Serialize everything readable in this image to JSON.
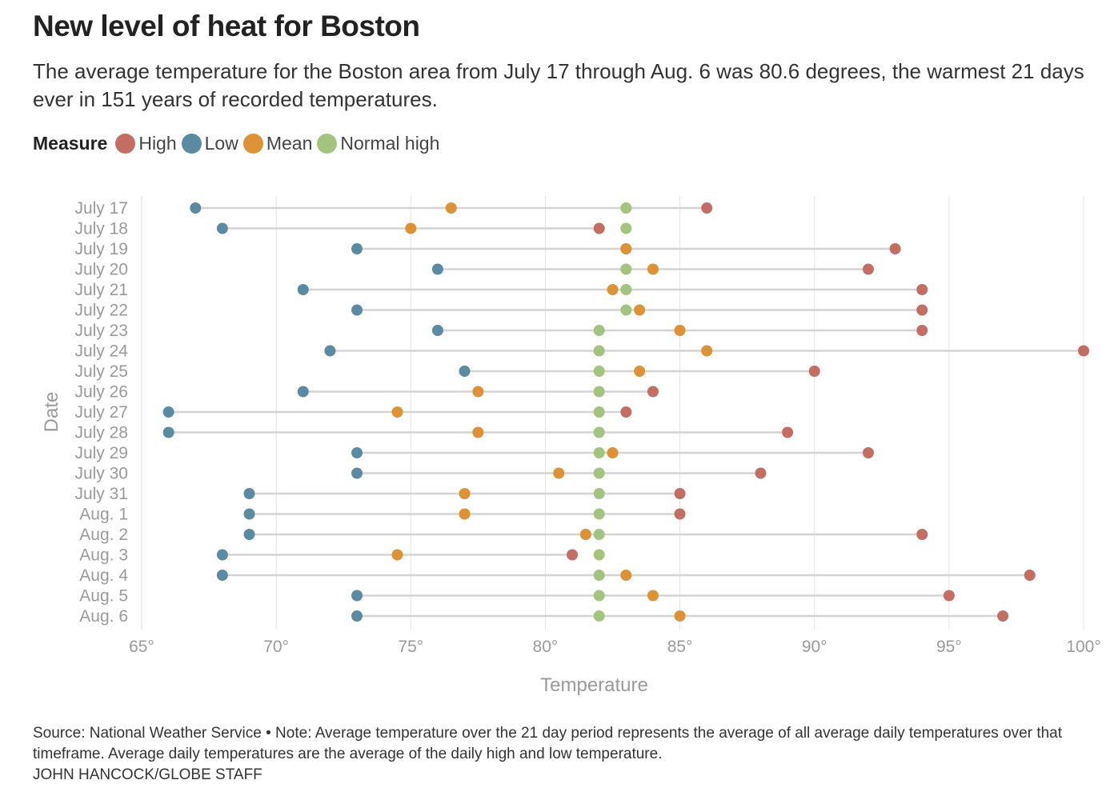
{
  "header": {
    "title": "New level of heat for Boston",
    "subtitle": "The average temperature for the Boston area from July 17 through Aug. 6 was 80.6 degrees, the warmest 21 days ever in 151 years of recorded temperatures."
  },
  "legend": {
    "title": "Measure",
    "items": [
      {
        "label": "High",
        "color": "#c46d63"
      },
      {
        "label": "Low",
        "color": "#5b8ba3"
      },
      {
        "label": "Mean",
        "color": "#dd9235"
      },
      {
        "label": "Normal high",
        "color": "#a2c47f"
      }
    ]
  },
  "footer": {
    "note": "Source: National Weather Service • Note: Average temperature over the 21 day period represents the average of all average daily temperatures over that timeframe. Average daily temperatures are the average of the daily high and low temperature.",
    "credit": "JOHN HANCOCK/GLOBE STAFF"
  },
  "chart_data": {
    "type": "scatter",
    "subtype": "dumbbell",
    "xlabel": "Temperature",
    "ylabel": "Date",
    "xlim": [
      65,
      100
    ],
    "xticks": [
      "65°",
      "70°",
      "75°",
      "80°",
      "85°",
      "90°",
      "95°",
      "100°"
    ],
    "grid": "vertical",
    "legend_position": "top-left",
    "categories": [
      "July 17",
      "July 18",
      "July 19",
      "July 20",
      "July 21",
      "July 22",
      "July 23",
      "July 24",
      "July 25",
      "July 26",
      "July 27",
      "July 28",
      "July 29",
      "July 30",
      "July 31",
      "Aug. 1",
      "Aug. 2",
      "Aug. 3",
      "Aug. 4",
      "Aug. 5",
      "Aug. 6"
    ],
    "series": [
      {
        "name": "High",
        "color": "#c46d63",
        "values": [
          86,
          82,
          93,
          92,
          94,
          94,
          94,
          100,
          90,
          84,
          83,
          89,
          92,
          88,
          85,
          85,
          94,
          81,
          98,
          95,
          97
        ]
      },
      {
        "name": "Low",
        "color": "#5b8ba3",
        "values": [
          67,
          68,
          73,
          76,
          71,
          73,
          76,
          72,
          77,
          71,
          66,
          66,
          73,
          73,
          69,
          69,
          69,
          68,
          68,
          73,
          73
        ]
      },
      {
        "name": "Mean",
        "color": "#dd9235",
        "values": [
          76.5,
          75,
          83,
          84,
          82.5,
          83.5,
          85,
          86,
          83.5,
          77.5,
          74.5,
          77.5,
          82.5,
          80.5,
          77,
          77,
          81.5,
          74.5,
          83,
          84,
          85
        ]
      },
      {
        "name": "Normal high",
        "color": "#a2c47f",
        "values": [
          83,
          83,
          83,
          83,
          83,
          83,
          82,
          82,
          82,
          82,
          82,
          82,
          82,
          82,
          82,
          82,
          82,
          82,
          82,
          82,
          82
        ]
      }
    ]
  }
}
